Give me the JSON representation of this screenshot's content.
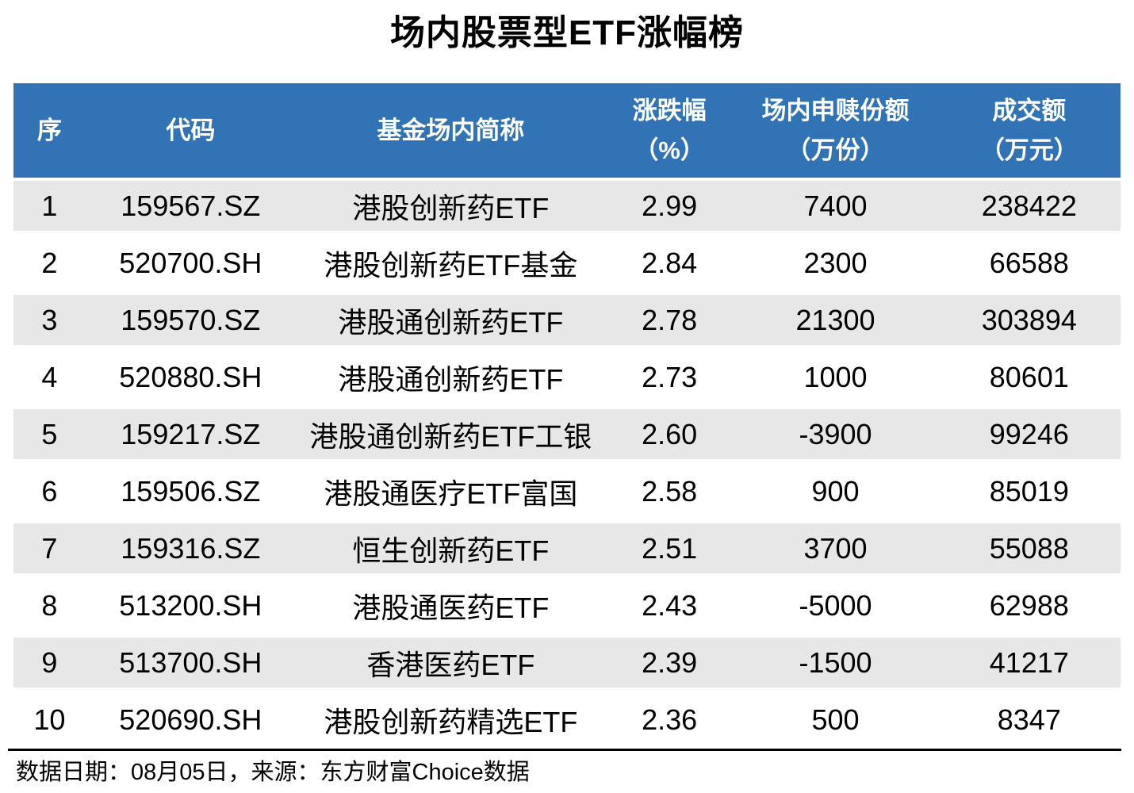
{
  "title": "场内股票型ETF涨幅榜",
  "chart_data": {
    "type": "table",
    "title": "场内股票型ETF涨幅榜",
    "columns": [
      {
        "key": "rank",
        "label": "序",
        "sub": ""
      },
      {
        "key": "code",
        "label": "代码",
        "sub": ""
      },
      {
        "key": "name",
        "label": "基金场内简称",
        "sub": ""
      },
      {
        "key": "change",
        "label": "涨跌幅",
        "sub": "（%）"
      },
      {
        "key": "shares",
        "label": "场内申赎份额",
        "sub": "（万份）"
      },
      {
        "key": "turnover",
        "label": "成交额",
        "sub": "（万元）"
      }
    ],
    "rows": [
      [
        "1",
        "159567.SZ",
        "港股创新药ETF",
        "2.99",
        "7400",
        "238422"
      ],
      [
        "2",
        "520700.SH",
        "港股创新药ETF基金",
        "2.84",
        "2300",
        "66588"
      ],
      [
        "3",
        "159570.SZ",
        "港股通创新药ETF",
        "2.78",
        "21300",
        "303894"
      ],
      [
        "4",
        "520880.SH",
        "港股通创新药ETF",
        "2.73",
        "1000",
        "80601"
      ],
      [
        "5",
        "159217.SZ",
        "港股通创新药ETF工银",
        "2.60",
        "-3900",
        "99246"
      ],
      [
        "6",
        "159506.SZ",
        "港股通医疗ETF富国",
        "2.58",
        "900",
        "85019"
      ],
      [
        "7",
        "159316.SZ",
        "恒生创新药ETF",
        "2.51",
        "3700",
        "55088"
      ],
      [
        "8",
        "513200.SH",
        "港股通医药ETF",
        "2.43",
        "-5000",
        "62988"
      ],
      [
        "9",
        "513700.SH",
        "香港医药ETF",
        "2.39",
        "-1500",
        "41217"
      ],
      [
        "10",
        "520690.SH",
        "港股创新药精选ETF",
        "2.36",
        "500",
        "8347"
      ]
    ]
  },
  "footer": {
    "source_note": "数据日期：08月05日，来源：东方财富Choice数据"
  },
  "colors": {
    "header_bg": "#3173B5",
    "header_text": "#FFFFFF",
    "row_alt_bg": "#E7E7E7",
    "body_text": "#000000",
    "divider": "#000000"
  }
}
